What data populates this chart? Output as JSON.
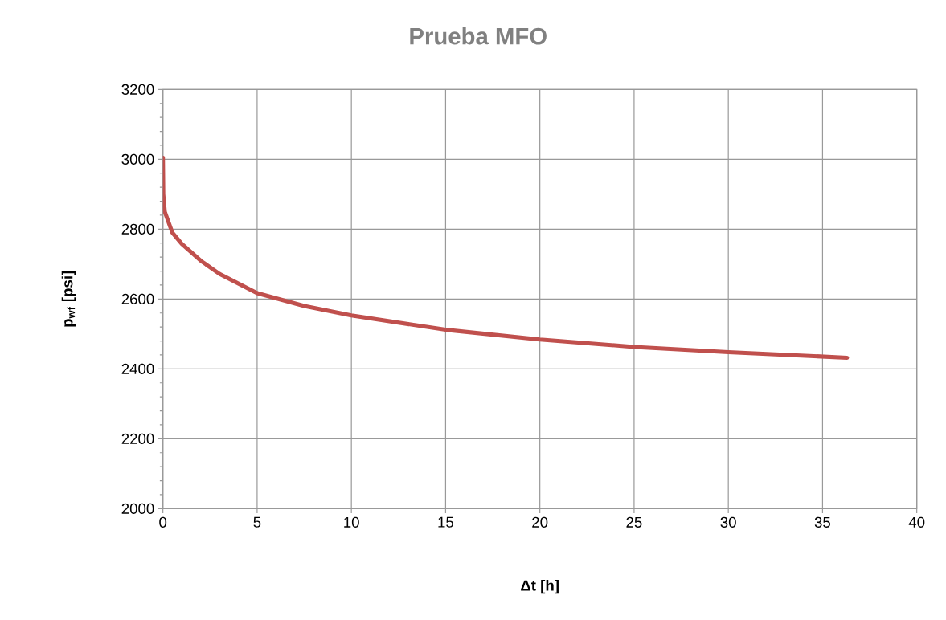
{
  "chart_data": {
    "type": "line",
    "title": "Prueba MFO",
    "xlabel": "Δt [h]",
    "ylabel": "p$_{wf}$ [psi]",
    "x": [
      0,
      0.02,
      0.1,
      0.5,
      1,
      2,
      3,
      5,
      7.5,
      10,
      15,
      20,
      25,
      30,
      36.3
    ],
    "series": [
      {
        "color": "#c0504d",
        "values": [
          3005,
          2900,
          2850,
          2790,
          2758,
          2710,
          2672,
          2617,
          2580,
          2553,
          2512,
          2484,
          2463,
          2448,
          2432
        ]
      }
    ],
    "xlim": [
      0,
      40
    ],
    "ylim": [
      2000,
      3200
    ],
    "xticks": [
      0,
      5,
      10,
      15,
      20,
      25,
      30,
      35,
      40
    ],
    "yticks": [
      2000,
      2200,
      2400,
      2600,
      2800,
      3000,
      3200
    ],
    "grid": true,
    "marker": "none",
    "line_style": "solid"
  }
}
